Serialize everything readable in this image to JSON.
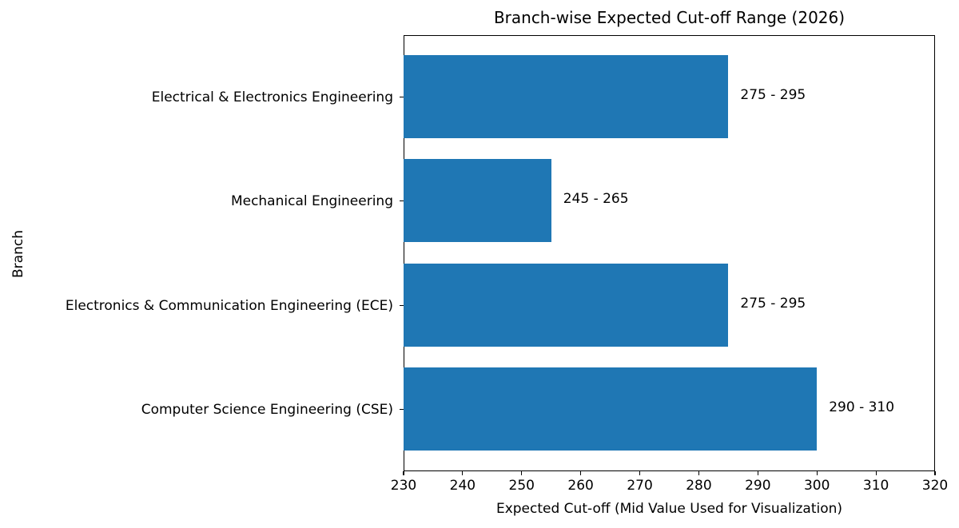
{
  "chart_data": {
    "type": "bar",
    "orientation": "horizontal",
    "title": "Branch-wise Expected Cut-off Range (2026)",
    "xlabel": "Expected Cut-off (Mid Value Used for Visualization)",
    "ylabel": "Branch",
    "xlim": [
      230,
      320
    ],
    "xticks": [
      "230",
      "240",
      "250",
      "260",
      "270",
      "280",
      "290",
      "300",
      "310",
      "320"
    ],
    "grid": false,
    "legend": null,
    "color": "#1f77b4",
    "categories": [
      "Computer Science Engineering (CSE)",
      "Electronics & Communication Engineering (ECE)",
      "Mechanical Engineering",
      "Electrical & Electronics Engineering"
    ],
    "values": [
      300,
      285,
      255,
      285
    ],
    "annotations": [
      "290 - 310",
      "275 - 295",
      "245 - 265",
      "275 - 295"
    ]
  }
}
